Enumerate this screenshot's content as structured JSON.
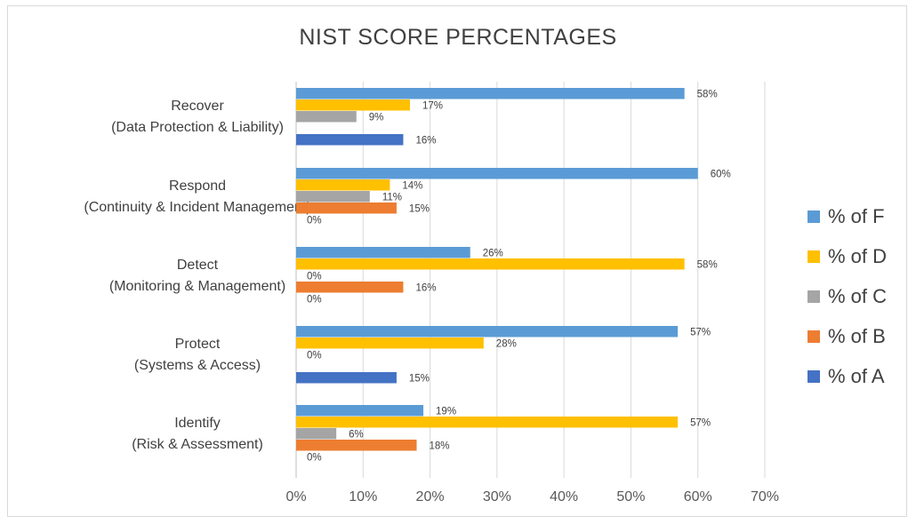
{
  "chart_data": {
    "type": "bar",
    "orientation": "horizontal",
    "title": "NIST SCORE PERCENTAGES",
    "categories": [
      [
        "Recover",
        "(Data Protection & Liability)"
      ],
      [
        "Respond",
        "(Continuity & Incident Management)"
      ],
      [
        "Detect",
        "(Monitoring & Management)"
      ],
      [
        "Protect",
        "(Systems & Access)"
      ],
      [
        "Identify",
        "(Risk & Assessment)"
      ]
    ],
    "series": [
      {
        "name": "% of F",
        "color": "#5B9BD5",
        "values": [
          58,
          60,
          26,
          57,
          19
        ]
      },
      {
        "name": "% of D",
        "color": "#FFC000",
        "values": [
          17,
          14,
          58,
          28,
          57
        ]
      },
      {
        "name": "% of C",
        "color": "#A5A5A5",
        "values": [
          9,
          11,
          0,
          0,
          6
        ]
      },
      {
        "name": "% of B",
        "color": "#ED7D31",
        "values": [
          null,
          15,
          16,
          null,
          18
        ]
      },
      {
        "name": "% of A",
        "color": "#4472C4",
        "values": [
          16,
          0,
          0,
          15,
          0
        ]
      }
    ],
    "value_format": "percent",
    "xlim": [
      0,
      70
    ],
    "x_ticks": [
      "0%",
      "10%",
      "20%",
      "30%",
      "40%",
      "50%",
      "60%",
      "70%"
    ],
    "grid": "vertical",
    "legend": "right"
  }
}
